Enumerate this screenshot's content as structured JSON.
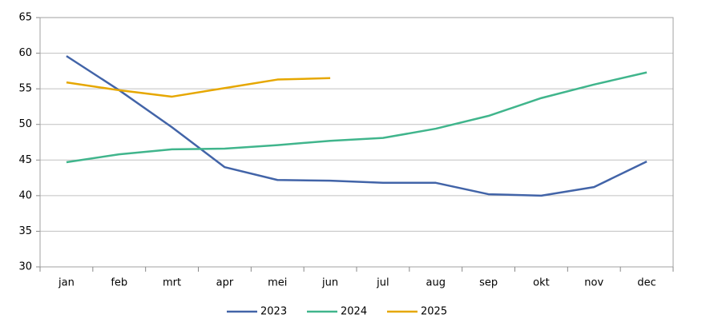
{
  "chart_data": {
    "type": "line",
    "categories": [
      "jan",
      "feb",
      "mrt",
      "apr",
      "mei",
      "jun",
      "jul",
      "aug",
      "sep",
      "okt",
      "nov",
      "dec"
    ],
    "series": [
      {
        "name": "2023",
        "color": "#4264a8",
        "values": [
          59.6,
          54.8,
          49.6,
          44.0,
          42.2,
          42.1,
          41.8,
          41.8,
          40.2,
          40.0,
          41.2,
          44.8
        ]
      },
      {
        "name": "2024",
        "color": "#40b58c",
        "values": [
          44.7,
          45.8,
          46.5,
          46.6,
          47.1,
          47.7,
          48.1,
          49.4,
          51.2,
          53.7,
          55.6,
          57.3
        ]
      },
      {
        "name": "2025",
        "color": "#e6a700",
        "values": [
          55.9,
          54.8,
          53.9,
          55.1,
          56.3,
          56.5,
          null,
          null,
          null,
          null,
          null,
          null
        ]
      }
    ],
    "ylim": [
      30,
      65
    ],
    "yticks": [
      30,
      35,
      40,
      45,
      50,
      55,
      60,
      65
    ],
    "grid": true,
    "legend": "bottom"
  }
}
